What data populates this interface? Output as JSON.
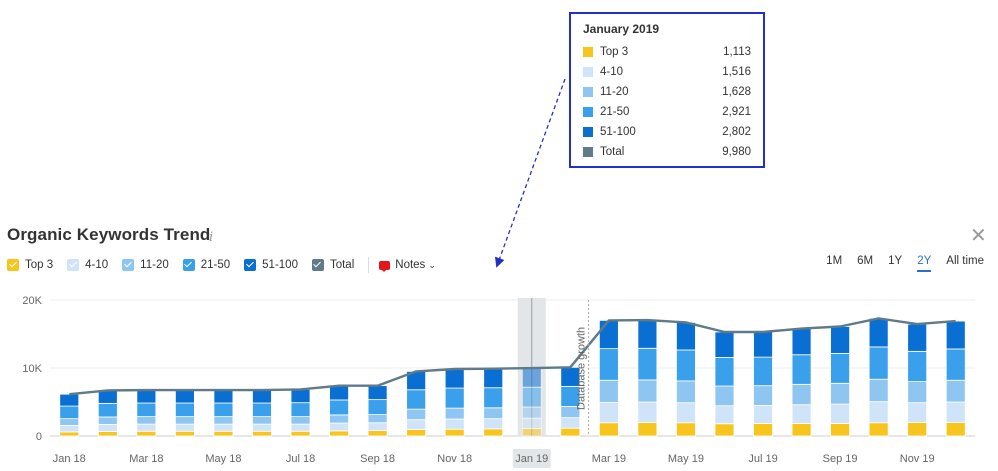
{
  "header": {
    "title": "Organic Keywords Trend",
    "info_glyph": "i",
    "close_glyph": "✕"
  },
  "legend": {
    "items": [
      {
        "label": "Top 3",
        "color": "#f7c51e"
      },
      {
        "label": "4-10",
        "color": "#cfe4f8"
      },
      {
        "label": "11-20",
        "color": "#8ec5f1"
      },
      {
        "label": "21-50",
        "color": "#3aa0ec"
      },
      {
        "label": "51-100",
        "color": "#0a6fd3"
      },
      {
        "label": "Total",
        "color": "#5f7a88"
      }
    ],
    "notes_label": "Notes"
  },
  "periods": [
    "1M",
    "6M",
    "1Y",
    "2Y",
    "All time"
  ],
  "active_period": "2Y",
  "tooltip": {
    "title": "January 2019",
    "rows": [
      {
        "label": "Top 3",
        "value": "1,113",
        "color": "#f7c51e"
      },
      {
        "label": "4-10",
        "value": "1,516",
        "color": "#cfe4f8"
      },
      {
        "label": "11-20",
        "value": "1,628",
        "color": "#8ec5f1"
      },
      {
        "label": "21-50",
        "value": "2,921",
        "color": "#3aa0ec"
      },
      {
        "label": "51-100",
        "value": "2,802",
        "color": "#0a6fd3"
      },
      {
        "label": "Total",
        "value": "9,980",
        "color": "#5f7a88"
      }
    ]
  },
  "chart_data": {
    "type": "bar",
    "stacked": true,
    "categories": [
      "Jan 18",
      "Feb 18",
      "Mar 18",
      "Apr 18",
      "May 18",
      "Jun 18",
      "Jul 18",
      "Aug 18",
      "Sep 18",
      "Oct 18",
      "Nov 18",
      "Dec 18",
      "Jan 19",
      "Feb 19",
      "Mar 19",
      "Apr 19",
      "May 19",
      "Jun 19",
      "Jul 19",
      "Aug 19",
      "Sep 19",
      "Oct 19",
      "Nov 19",
      "Dec 19"
    ],
    "x_tick_labels": [
      "Jan 18",
      "Mar 18",
      "May 18",
      "Jul 18",
      "Sep 18",
      "Nov 18",
      "Jan 19",
      "Mar 19",
      "May 19",
      "Jul 19",
      "Sep 19",
      "Nov 19"
    ],
    "highlighted_category": "Jan 19",
    "series": [
      {
        "name": "Top 3",
        "color": "#f7c51e",
        "values": [
          600,
          650,
          700,
          700,
          700,
          700,
          700,
          750,
          800,
          950,
          1000,
          1050,
          1113,
          1150,
          1950,
          2000,
          1950,
          1800,
          1850,
          1850,
          1850,
          1950,
          2000,
          2000
        ]
      },
      {
        "name": "4-10",
        "color": "#cfe4f8",
        "values": [
          950,
          1050,
          1050,
          1050,
          1050,
          1050,
          1050,
          1150,
          1150,
          1450,
          1500,
          1500,
          1516,
          1550,
          3000,
          3000,
          2950,
          2650,
          2650,
          2750,
          2850,
          3100,
          2900,
          3000
        ]
      },
      {
        "name": "11-20",
        "color": "#8ec5f1",
        "values": [
          1000,
          1100,
          1100,
          1100,
          1100,
          1100,
          1100,
          1200,
          1200,
          1550,
          1600,
          1600,
          1628,
          1650,
          3250,
          3250,
          3200,
          2900,
          2900,
          3000,
          3050,
          3300,
          3100,
          3200
        ]
      },
      {
        "name": "21-50",
        "color": "#3aa0ec",
        "values": [
          1850,
          2000,
          2000,
          2000,
          2000,
          2000,
          2050,
          2200,
          2200,
          2850,
          2950,
          2950,
          2921,
          2950,
          4650,
          4650,
          4550,
          4200,
          4200,
          4350,
          4400,
          4750,
          4450,
          4600
        ]
      },
      {
        "name": "51-100",
        "color": "#0a6fd3",
        "values": [
          1750,
          1900,
          1900,
          1900,
          1900,
          1900,
          1950,
          2100,
          2050,
          2700,
          2800,
          2800,
          2802,
          2800,
          4150,
          4150,
          4050,
          3750,
          3700,
          3850,
          3950,
          4200,
          4000,
          4100
        ]
      }
    ],
    "total": {
      "name": "Total",
      "color": "#5f7a88",
      "values": [
        6150,
        6700,
        6750,
        6750,
        6750,
        6750,
        6850,
        7400,
        7400,
        9500,
        9850,
        9900,
        9980,
        10100,
        17000,
        17050,
        16700,
        15300,
        15300,
        15800,
        16100,
        17300,
        16450,
        16900
      ]
    },
    "y_ticks": [
      0,
      10000,
      20000
    ],
    "y_tick_labels": [
      "0",
      "10K",
      "20K"
    ],
    "ylim": [
      0,
      20000
    ],
    "annotation": {
      "label": "Database growth",
      "at_category": "Mar 19"
    },
    "grid": true
  }
}
